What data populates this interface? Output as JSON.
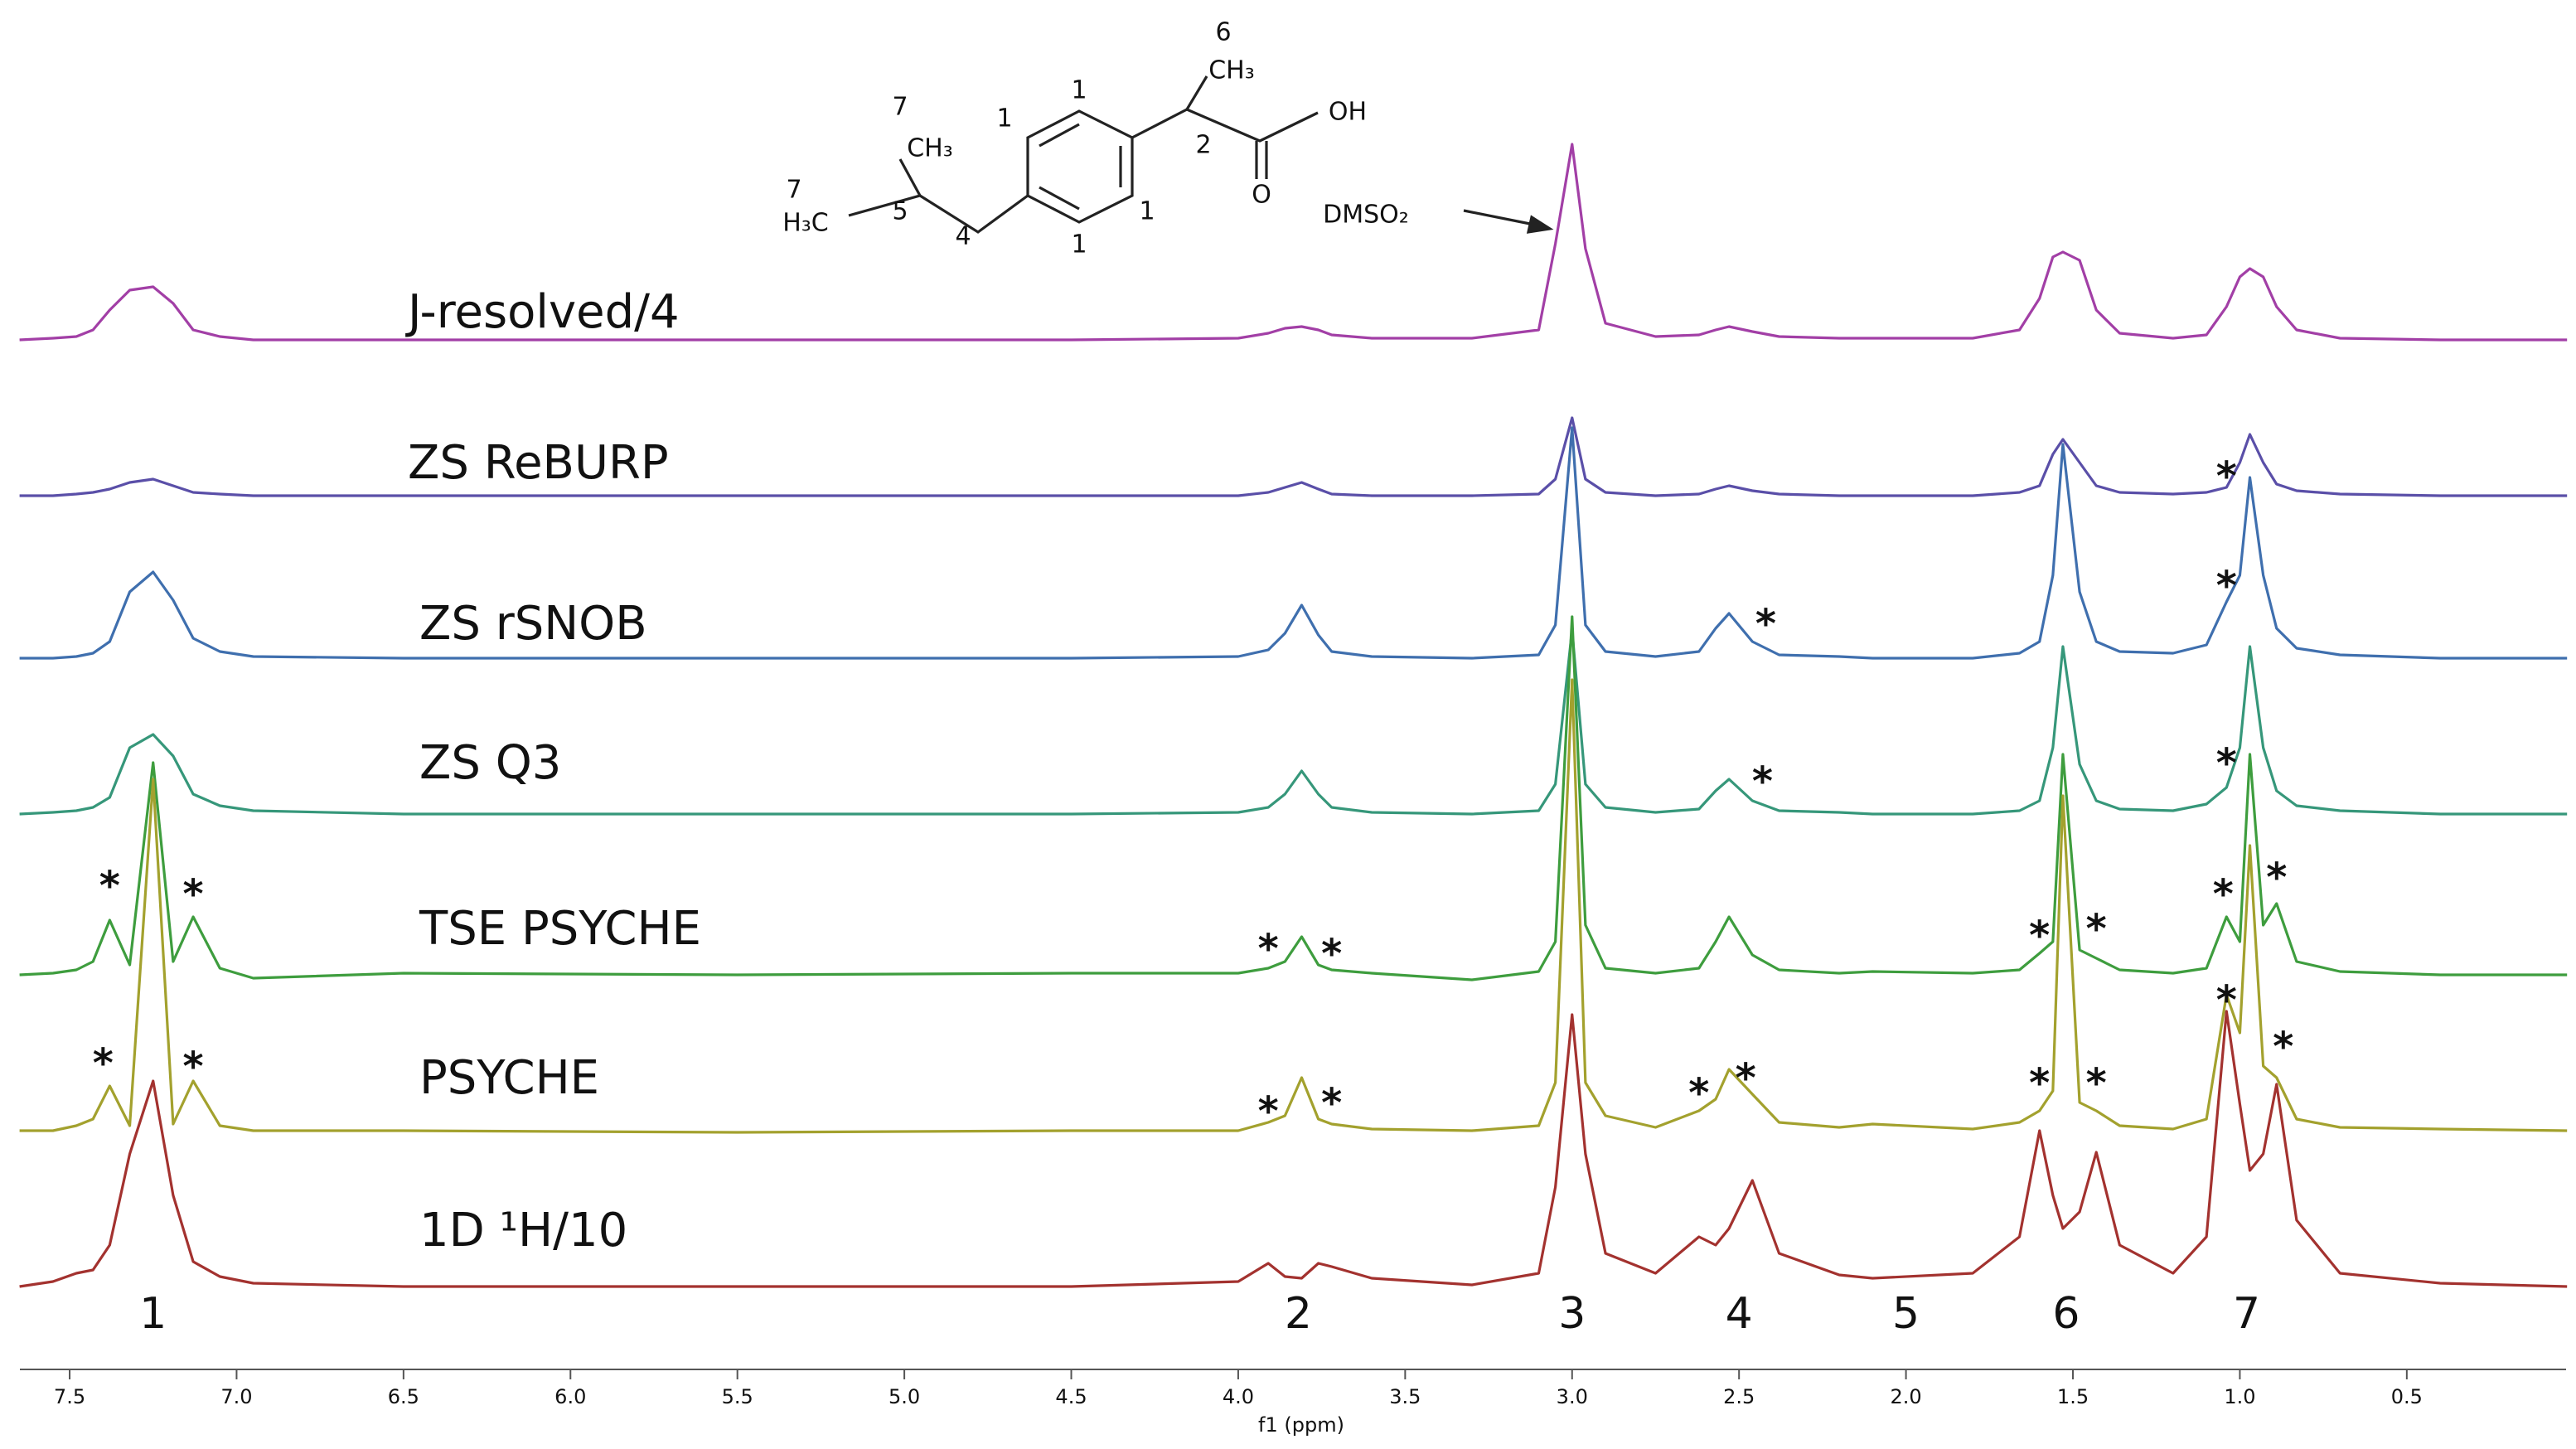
{
  "chart_data": {
    "type": "line",
    "x_label": "f1 (ppm)",
    "xlim": [
      7.649,
      0.023
    ],
    "xticks": [
      7.5,
      {
        "value": 7,
        "label": "7.0"
      },
      6.5,
      {
        "value": 6,
        "label": "6.0"
      },
      5.5,
      {
        "value": 5,
        "label": "5.0"
      },
      4.5,
      {
        "value": 4,
        "label": "4.0"
      },
      3.5,
      {
        "value": 3,
        "label": "3.0"
      },
      2.5,
      {
        "value": 2,
        "label": "2.0"
      },
      1.5,
      {
        "value": 1,
        "label": "1.0"
      },
      0.5
    ],
    "x": [
      7.65,
      7.55,
      7.48,
      7.43,
      7.38,
      7.32,
      7.25,
      7.19,
      7.13,
      7.05,
      6.95,
      6.5,
      5.5,
      4.5,
      4.0,
      3.91,
      3.86,
      3.81,
      3.76,
      3.72,
      3.6,
      3.3,
      3.1,
      3.05,
      3.0,
      2.96,
      2.9,
      2.75,
      2.62,
      2.57,
      2.53,
      2.46,
      2.38,
      2.2,
      2.1,
      1.8,
      1.66,
      1.6,
      1.56,
      1.53,
      1.48,
      1.43,
      1.36,
      1.2,
      1.1,
      1.04,
      1.0,
      0.97,
      0.93,
      0.89,
      0.83,
      0.7,
      0.4,
      0.02
    ],
    "series": [
      {
        "name": "J-resolved/4",
        "color": "#a23fa6",
        "values": [
          0,
          1,
          2,
          6,
          18,
          30,
          32,
          22,
          6,
          2,
          0,
          0,
          0,
          0,
          1,
          4,
          7,
          8,
          6,
          3,
          1,
          1,
          6,
          58,
          118,
          55,
          10,
          2,
          3,
          6,
          8,
          5,
          2,
          1,
          1,
          1,
          6,
          25,
          50,
          53,
          48,
          18,
          4,
          1,
          3,
          20,
          38,
          43,
          38,
          20,
          6,
          1,
          0,
          0
        ],
        "annotations": []
      },
      {
        "name": "ZS ReBURP",
        "color": "#5a4fa8",
        "values": [
          0,
          0,
          1,
          2,
          4,
          8,
          10,
          6,
          2,
          1,
          0,
          0,
          0,
          0,
          0,
          2,
          5,
          8,
          4,
          1,
          0,
          0,
          1,
          10,
          47,
          10,
          2,
          0,
          1,
          4,
          6,
          3,
          1,
          0,
          0,
          0,
          2,
          6,
          25,
          34,
          20,
          6,
          2,
          1,
          2,
          5,
          20,
          37,
          20,
          7,
          3,
          1,
          0,
          0
        ],
        "annotations": [
          {
            "text": "*",
            "x": 1.04,
            "y": 16
          }
        ]
      },
      {
        "name": "ZS rSNOB",
        "color": "#3f6fae",
        "values": [
          0,
          0,
          1,
          3,
          10,
          40,
          52,
          35,
          12,
          4,
          1,
          0,
          0,
          0,
          1,
          5,
          15,
          32,
          14,
          4,
          1,
          0,
          2,
          20,
          139,
          20,
          4,
          1,
          4,
          18,
          27,
          10,
          2,
          1,
          0,
          0,
          3,
          10,
          50,
          129,
          40,
          10,
          4,
          3,
          8,
          34,
          50,
          109,
          50,
          18,
          6,
          2,
          0,
          0
        ],
        "annotations": [
          {
            "text": "*",
            "x": 2.42,
            "y": 25
          },
          {
            "text": "*",
            "x": 1.04,
            "y": 48
          }
        ]
      },
      {
        "name": "ZS Q3",
        "color": "#36977a",
        "values": [
          0,
          1,
          2,
          4,
          10,
          40,
          48,
          35,
          12,
          5,
          2,
          0,
          0,
          0,
          1,
          4,
          12,
          26,
          12,
          4,
          1,
          0,
          2,
          18,
          111,
          18,
          4,
          1,
          3,
          14,
          21,
          8,
          2,
          1,
          0,
          0,
          2,
          8,
          40,
          101,
          30,
          8,
          3,
          2,
          6,
          16,
          40,
          101,
          40,
          14,
          5,
          2,
          0,
          0
        ],
        "annotations": [
          {
            "text": "*",
            "x": 2.43,
            "y": 24
          },
          {
            "text": "*",
            "x": 1.04,
            "y": 35
          }
        ]
      },
      {
        "name": "TSE PSYCHE",
        "color": "#3e9d3e",
        "values": [
          0,
          1,
          3,
          8,
          33,
          6,
          128,
          8,
          35,
          4,
          -2,
          1,
          0,
          1,
          1,
          4,
          8,
          23,
          6,
          3,
          1,
          -3,
          2,
          20,
          216,
          30,
          4,
          1,
          4,
          20,
          35,
          12,
          3,
          1,
          2,
          1,
          3,
          13,
          20,
          133,
          15,
          10,
          3,
          1,
          4,
          35,
          20,
          133,
          30,
          43,
          8,
          2,
          0,
          0
        ],
        "annotations": [
          {
            "text": "*",
            "x": 7.38,
            "y": 58
          },
          {
            "text": "*",
            "x": 7.13,
            "y": 53
          },
          {
            "text": "*",
            "x": 3.91,
            "y": 20
          },
          {
            "text": "*",
            "x": 3.72,
            "y": 17
          },
          {
            "text": "*",
            "x": 1.6,
            "y": 28
          },
          {
            "text": "*",
            "x": 1.43,
            "y": 32
          },
          {
            "text": "*",
            "x": 1.05,
            "y": 53
          },
          {
            "text": "*",
            "x": 0.89,
            "y": 63
          }
        ]
      },
      {
        "name": "PSYCHE",
        "color": "#a3a12e",
        "values": [
          1,
          1,
          4,
          8,
          28,
          4,
          213,
          5,
          31,
          4,
          1,
          1,
          0,
          1,
          1,
          6,
          10,
          33,
          8,
          5,
          2,
          1,
          4,
          30,
          273,
          30,
          10,
          3,
          13,
          20,
          38,
          23,
          6,
          3,
          5,
          2,
          6,
          13,
          25,
          203,
          18,
          13,
          4,
          2,
          8,
          83,
          60,
          173,
          40,
          33,
          8,
          3,
          2,
          1
        ],
        "annotations": [
          {
            "text": "*",
            "x": 7.4,
            "y": 46
          },
          {
            "text": "*",
            "x": 7.13,
            "y": 44
          },
          {
            "text": "*",
            "x": 3.91,
            "y": 17
          },
          {
            "text": "*",
            "x": 3.72,
            "y": 22
          },
          {
            "text": "*",
            "x": 2.62,
            "y": 28
          },
          {
            "text": "*",
            "x": 2.48,
            "y": 37
          },
          {
            "text": "*",
            "x": 1.6,
            "y": 34
          },
          {
            "text": "*",
            "x": 1.43,
            "y": 34
          },
          {
            "text": "*",
            "x": 1.04,
            "y": 84
          },
          {
            "text": "*",
            "x": 0.87,
            "y": 56
          }
        ]
      },
      {
        "name": "1D ¹H/10",
        "color": "#a3322f",
        "values": [
          0,
          3,
          8,
          10,
          25,
          80,
          124,
          55,
          15,
          6,
          2,
          0,
          0,
          0,
          3,
          14,
          6,
          5,
          14,
          12,
          5,
          1,
          8,
          60,
          164,
          80,
          20,
          8,
          30,
          25,
          35,
          64,
          20,
          7,
          5,
          8,
          30,
          94,
          55,
          35,
          45,
          81,
          25,
          8,
          30,
          166,
          110,
          70,
          80,
          122,
          40,
          8,
          2,
          0
        ],
        "annotations": []
      }
    ],
    "peak_labels": [
      {
        "text": "1",
        "x": 7.25
      },
      {
        "text": "2",
        "x": 3.82
      },
      {
        "text": "3",
        "x": 3.0
      },
      {
        "text": "4",
        "x": 2.5
      },
      {
        "text": "5",
        "x": 2.0
      },
      {
        "text": "6",
        "x": 1.52
      },
      {
        "text": "7",
        "x": 0.98
      }
    ]
  },
  "structure": {
    "labels": [
      "6",
      "CH₃",
      "1",
      "1",
      "1",
      "1",
      "2",
      "OH",
      "O",
      "7",
      "CH₃",
      "7",
      "H₃C",
      "5",
      "4",
      "DMSO₂"
    ]
  }
}
